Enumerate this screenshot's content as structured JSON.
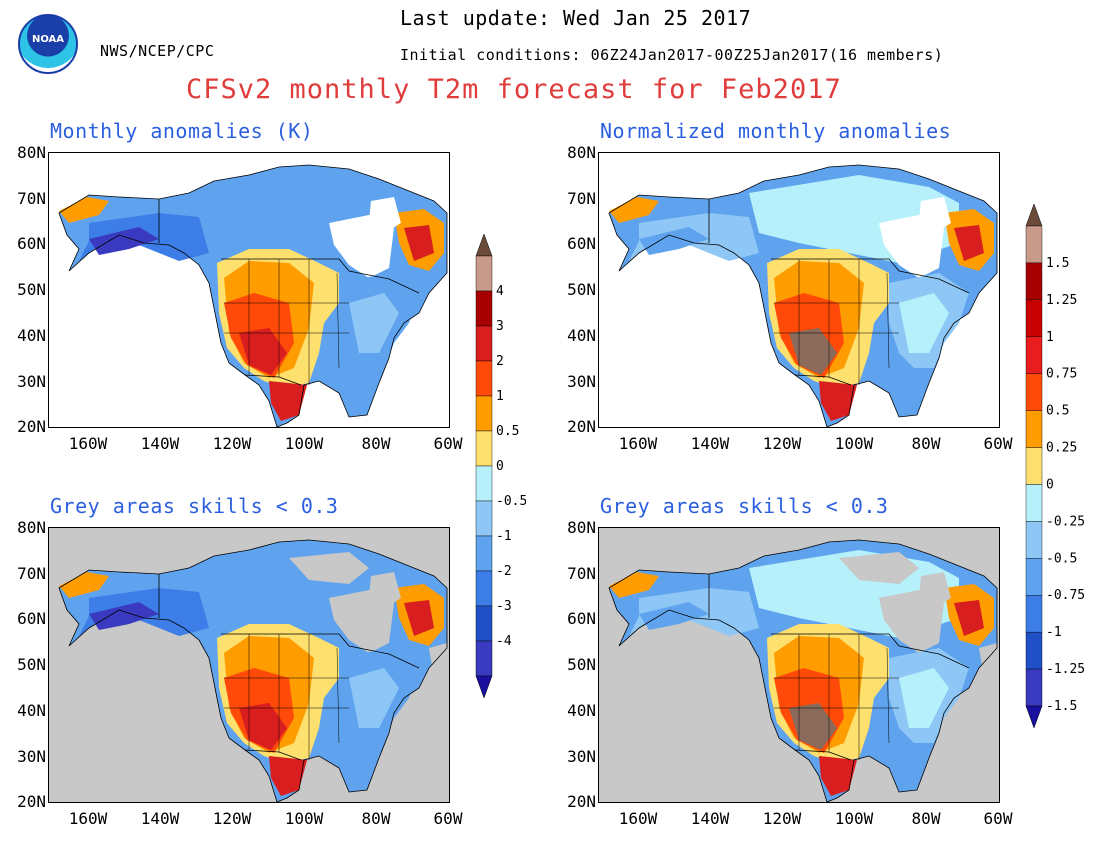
{
  "header": {
    "last_update": "Last update: Wed Jan 25 2017",
    "initial_conditions": "Initial conditions: 06Z24Jan2017-00Z25Jan2017(16 members)",
    "agency": "NWS/NCEP/CPC",
    "logo_text": "NOAA",
    "title": "CFSv2 monthly T2m forecast for Feb2017"
  },
  "panels": [
    {
      "title": "Monthly anomalies (K)",
      "grey_background": false
    },
    {
      "title": "Normalized monthly anomalies",
      "grey_background": false
    },
    {
      "title": "Grey areas skills < 0.3",
      "grey_background": true
    },
    {
      "title": "Grey areas skills < 0.3",
      "grey_background": true
    }
  ],
  "axes": {
    "lat_ticks": [
      "80N",
      "70N",
      "60N",
      "50N",
      "40N",
      "30N",
      "20N"
    ],
    "lon_ticks": [
      "160W",
      "140W",
      "120W",
      "100W",
      "80W",
      "60W"
    ]
  },
  "colorbar_left": {
    "labels": [
      "4",
      "3",
      "2",
      "1",
      "0.5",
      "0",
      "-0.5",
      "-1",
      "-2",
      "-3",
      "-4"
    ],
    "colors": [
      "#6b4a3a",
      "#c89a8a",
      "#a80000",
      "#d81e1e",
      "#ff4a0a",
      "#ff9c00",
      "#fde06e",
      "#b6f0fa",
      "#8ec7f5",
      "#5fa3ef",
      "#3c7de8",
      "#2050c8",
      "#3a3ac0",
      "#1a10a0"
    ]
  },
  "colorbar_right": {
    "labels": [
      "1.5",
      "1.25",
      "1",
      "0.75",
      "0.5",
      "0.25",
      "0",
      "-0.25",
      "-0.5",
      "-0.75",
      "-1",
      "-1.25",
      "-1.5"
    ],
    "colors": [
      "#6b4a3a",
      "#c89a8a",
      "#a80000",
      "#c80000",
      "#e81e1e",
      "#ff4a0a",
      "#ff9c00",
      "#fde06e",
      "#b6f0fa",
      "#8ec7f5",
      "#5fa3ef",
      "#3c7de8",
      "#2050c8",
      "#3a3ac0",
      "#1a10a0"
    ]
  },
  "palette": {
    "ocean": "#ffffff",
    "grey": "#c8c8c8",
    "ice": "#ffffff",
    "cold3": "#3a3ac0",
    "cold2": "#3c7de8",
    "cold1": "#5fa3ef",
    "cold0": "#8ec7f5",
    "cool": "#b6f0fa",
    "warm0": "#fde06e",
    "warm1": "#ff9c00",
    "warm2": "#ff4a0a",
    "warm3": "#d81e1e",
    "warm4": "#a80000",
    "warm5": "#8a6a5a"
  }
}
